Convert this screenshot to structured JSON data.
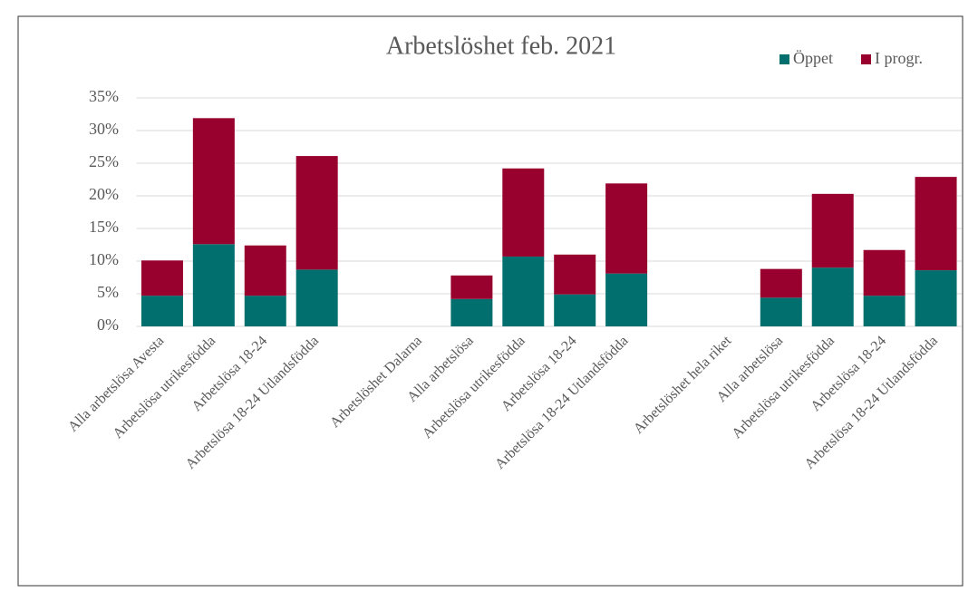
{
  "chart_data": {
    "type": "stacked_bar",
    "title": "Arbetslöshet feb. 2021",
    "categories": [
      "Alla arbetslösa Avesta",
      "Arbetslösa utrikesfödda",
      "Arbetslösa 18-24",
      "Arbetslösa 18-24 Utlandsfödda",
      null,
      "Arbetslöshet Dalarna",
      "Alla arbetslösa",
      "Arbetslösa utrikesfödda",
      "Arbetslösa 18-24",
      "Arbetslösa 18-24 Utlandsfödda",
      null,
      "Arbetslöshet hela riket",
      "Alla arbetslösa",
      "Arbetslösa utrikesfödda",
      "Arbetslösa 18-24",
      "Arbetslösa 18-24 Utlandsfödda"
    ],
    "series": [
      {
        "name": "Öppet",
        "color": "#006f6e",
        "values": [
          4.7,
          12.6,
          4.7,
          8.7,
          null,
          null,
          4.2,
          10.7,
          4.9,
          8.1,
          null,
          null,
          4.4,
          9.0,
          4.7,
          8.6
        ]
      },
      {
        "name": "I progr.",
        "color": "#98002e",
        "values": [
          5.4,
          19.3,
          7.7,
          17.4,
          null,
          null,
          3.6,
          13.5,
          6.1,
          13.8,
          null,
          null,
          4.4,
          11.3,
          7.0,
          14.3
        ]
      }
    ],
    "ylim": [
      0,
      35
    ],
    "yticks": [
      {
        "value": 0,
        "label": "0%"
      },
      {
        "value": 5,
        "label": "5%"
      },
      {
        "value": 10,
        "label": "10%"
      },
      {
        "value": 15,
        "label": "15%"
      },
      {
        "value": 20,
        "label": "20%"
      },
      {
        "value": 25,
        "label": "25%"
      },
      {
        "value": 30,
        "label": "30%"
      },
      {
        "value": 35,
        "label": "35%"
      }
    ],
    "grid": true,
    "legend": "top-right"
  }
}
